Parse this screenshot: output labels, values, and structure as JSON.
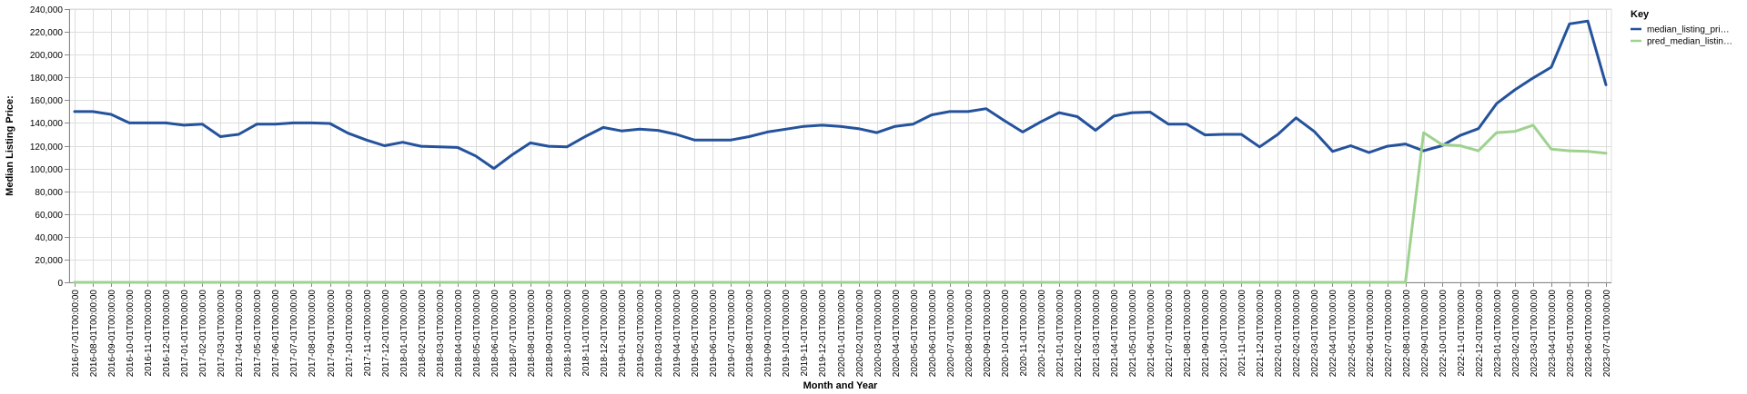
{
  "chart_data": {
    "type": "line",
    "xlabel": "Month and Year",
    "ylabel": "Median Listing Price:",
    "ylim": [
      0,
      240000
    ],
    "yticks": [
      "0",
      "20,000",
      "40,000",
      "60,000",
      "80,000",
      "100,000",
      "120,000",
      "140,000",
      "160,000",
      "180,000",
      "200,000",
      "220,000",
      "240,000"
    ],
    "grid": true,
    "legend": {
      "title": "Key",
      "position": "right",
      "entries": [
        "median_listing_pri…",
        "pred_median_listin…"
      ]
    },
    "x": [
      "2016-07-01T00:00:00",
      "2016-08-01T00:00:00",
      "2016-09-01T00:00:00",
      "2016-10-01T00:00:00",
      "2016-11-01T00:00:00",
      "2016-12-01T00:00:00",
      "2017-01-01T00:00:00",
      "2017-02-01T00:00:00",
      "2017-03-01T00:00:00",
      "2017-04-01T00:00:00",
      "2017-05-01T00:00:00",
      "2017-06-01T00:00:00",
      "2017-07-01T00:00:00",
      "2017-08-01T00:00:00",
      "2017-09-01T00:00:00",
      "2017-10-01T00:00:00",
      "2017-11-01T00:00:00",
      "2017-12-01T00:00:00",
      "2018-01-01T00:00:00",
      "2018-02-01T00:00:00",
      "2018-03-01T00:00:00",
      "2018-04-01T00:00:00",
      "2018-05-01T00:00:00",
      "2018-06-01T00:00:00",
      "2018-07-01T00:00:00",
      "2018-08-01T00:00:00",
      "2018-09-01T00:00:00",
      "2018-10-01T00:00:00",
      "2018-11-01T00:00:00",
      "2018-12-01T00:00:00",
      "2019-01-01T00:00:00",
      "2019-02-01T00:00:00",
      "2019-03-01T00:00:00",
      "2019-04-01T00:00:00",
      "2019-05-01T00:00:00",
      "2019-06-01T00:00:00",
      "2019-07-01T00:00:00",
      "2019-08-01T00:00:00",
      "2019-09-01T00:00:00",
      "2019-10-01T00:00:00",
      "2019-11-01T00:00:00",
      "2019-12-01T00:00:00",
      "2020-01-01T00:00:00",
      "2020-02-01T00:00:00",
      "2020-03-01T00:00:00",
      "2020-04-01T00:00:00",
      "2020-05-01T00:00:00",
      "2020-06-01T00:00:00",
      "2020-07-01T00:00:00",
      "2020-08-01T00:00:00",
      "2020-09-01T00:00:00",
      "2020-10-01T00:00:00",
      "2020-11-01T00:00:00",
      "2020-12-01T00:00:00",
      "2021-01-01T00:00:00",
      "2021-02-01T00:00:00",
      "2021-03-01T00:00:00",
      "2021-04-01T00:00:00",
      "2021-05-01T00:00:00",
      "2021-06-01T00:00:00",
      "2021-07-01T00:00:00",
      "2021-08-01T00:00:00",
      "2021-09-01T00:00:00",
      "2021-10-01T00:00:00",
      "2021-11-01T00:00:00",
      "2021-12-01T00:00:00",
      "2022-01-01T00:00:00",
      "2022-02-01T00:00:00",
      "2022-03-01T00:00:00",
      "2022-04-01T00:00:00",
      "2022-05-01T00:00:00",
      "2022-06-01T00:00:00",
      "2022-07-01T00:00:00",
      "2022-08-01T00:00:00",
      "2022-09-01T00:00:00",
      "2022-10-01T00:00:00",
      "2022-11-01T00:00:00",
      "2022-12-01T00:00:00",
      "2023-01-01T00:00:00",
      "2023-02-01T00:00:00",
      "2023-03-01T00:00:00",
      "2023-04-01T00:00:00",
      "2023-05-01T00:00:00",
      "2023-06-01T00:00:00",
      "2023-07-01T00:00:00"
    ],
    "series": [
      {
        "name": "median_listing_pri…",
        "color": "#24529c",
        "values": [
          150000,
          150000,
          147500,
          140000,
          140000,
          140000,
          138000,
          139000,
          128000,
          130000,
          139000,
          139000,
          140000,
          140000,
          139500,
          131000,
          125000,
          120000,
          123000,
          119500,
          119000,
          118500,
          111000,
          100000,
          112000,
          122500,
          119500,
          119000,
          128000,
          136000,
          133000,
          134500,
          133500,
          130000,
          125000,
          125000,
          125000,
          128000,
          132000,
          134500,
          137000,
          138000,
          137000,
          135000,
          131500,
          137000,
          139000,
          147000,
          150000,
          150000,
          152500,
          142000,
          132000,
          141000,
          149000,
          145500,
          133500,
          146000,
          149000,
          149500,
          139000,
          139000,
          129500,
          130000,
          130000,
          119000,
          130000,
          144500,
          132500,
          115000,
          120000,
          114000,
          119500,
          121500,
          115500,
          120000,
          129000,
          135000,
          157000,
          169000,
          179500,
          189000,
          227000,
          229500,
          173500
        ]
      },
      {
        "name": "pred_median_listin…",
        "color": "#9ed28f",
        "values": [
          0,
          0,
          0,
          0,
          0,
          0,
          0,
          0,
          0,
          0,
          0,
          0,
          0,
          0,
          0,
          0,
          0,
          0,
          0,
          0,
          0,
          0,
          0,
          0,
          0,
          0,
          0,
          0,
          0,
          0,
          0,
          0,
          0,
          0,
          0,
          0,
          0,
          0,
          0,
          0,
          0,
          0,
          0,
          0,
          0,
          0,
          0,
          0,
          0,
          0,
          0,
          0,
          0,
          0,
          0,
          0,
          0,
          0,
          0,
          0,
          0,
          0,
          0,
          0,
          0,
          0,
          0,
          0,
          0,
          0,
          0,
          0,
          0,
          0,
          131500,
          121000,
          120000,
          115500,
          131500,
          132500,
          138000,
          117000,
          115500,
          115000,
          113500
        ]
      }
    ]
  }
}
